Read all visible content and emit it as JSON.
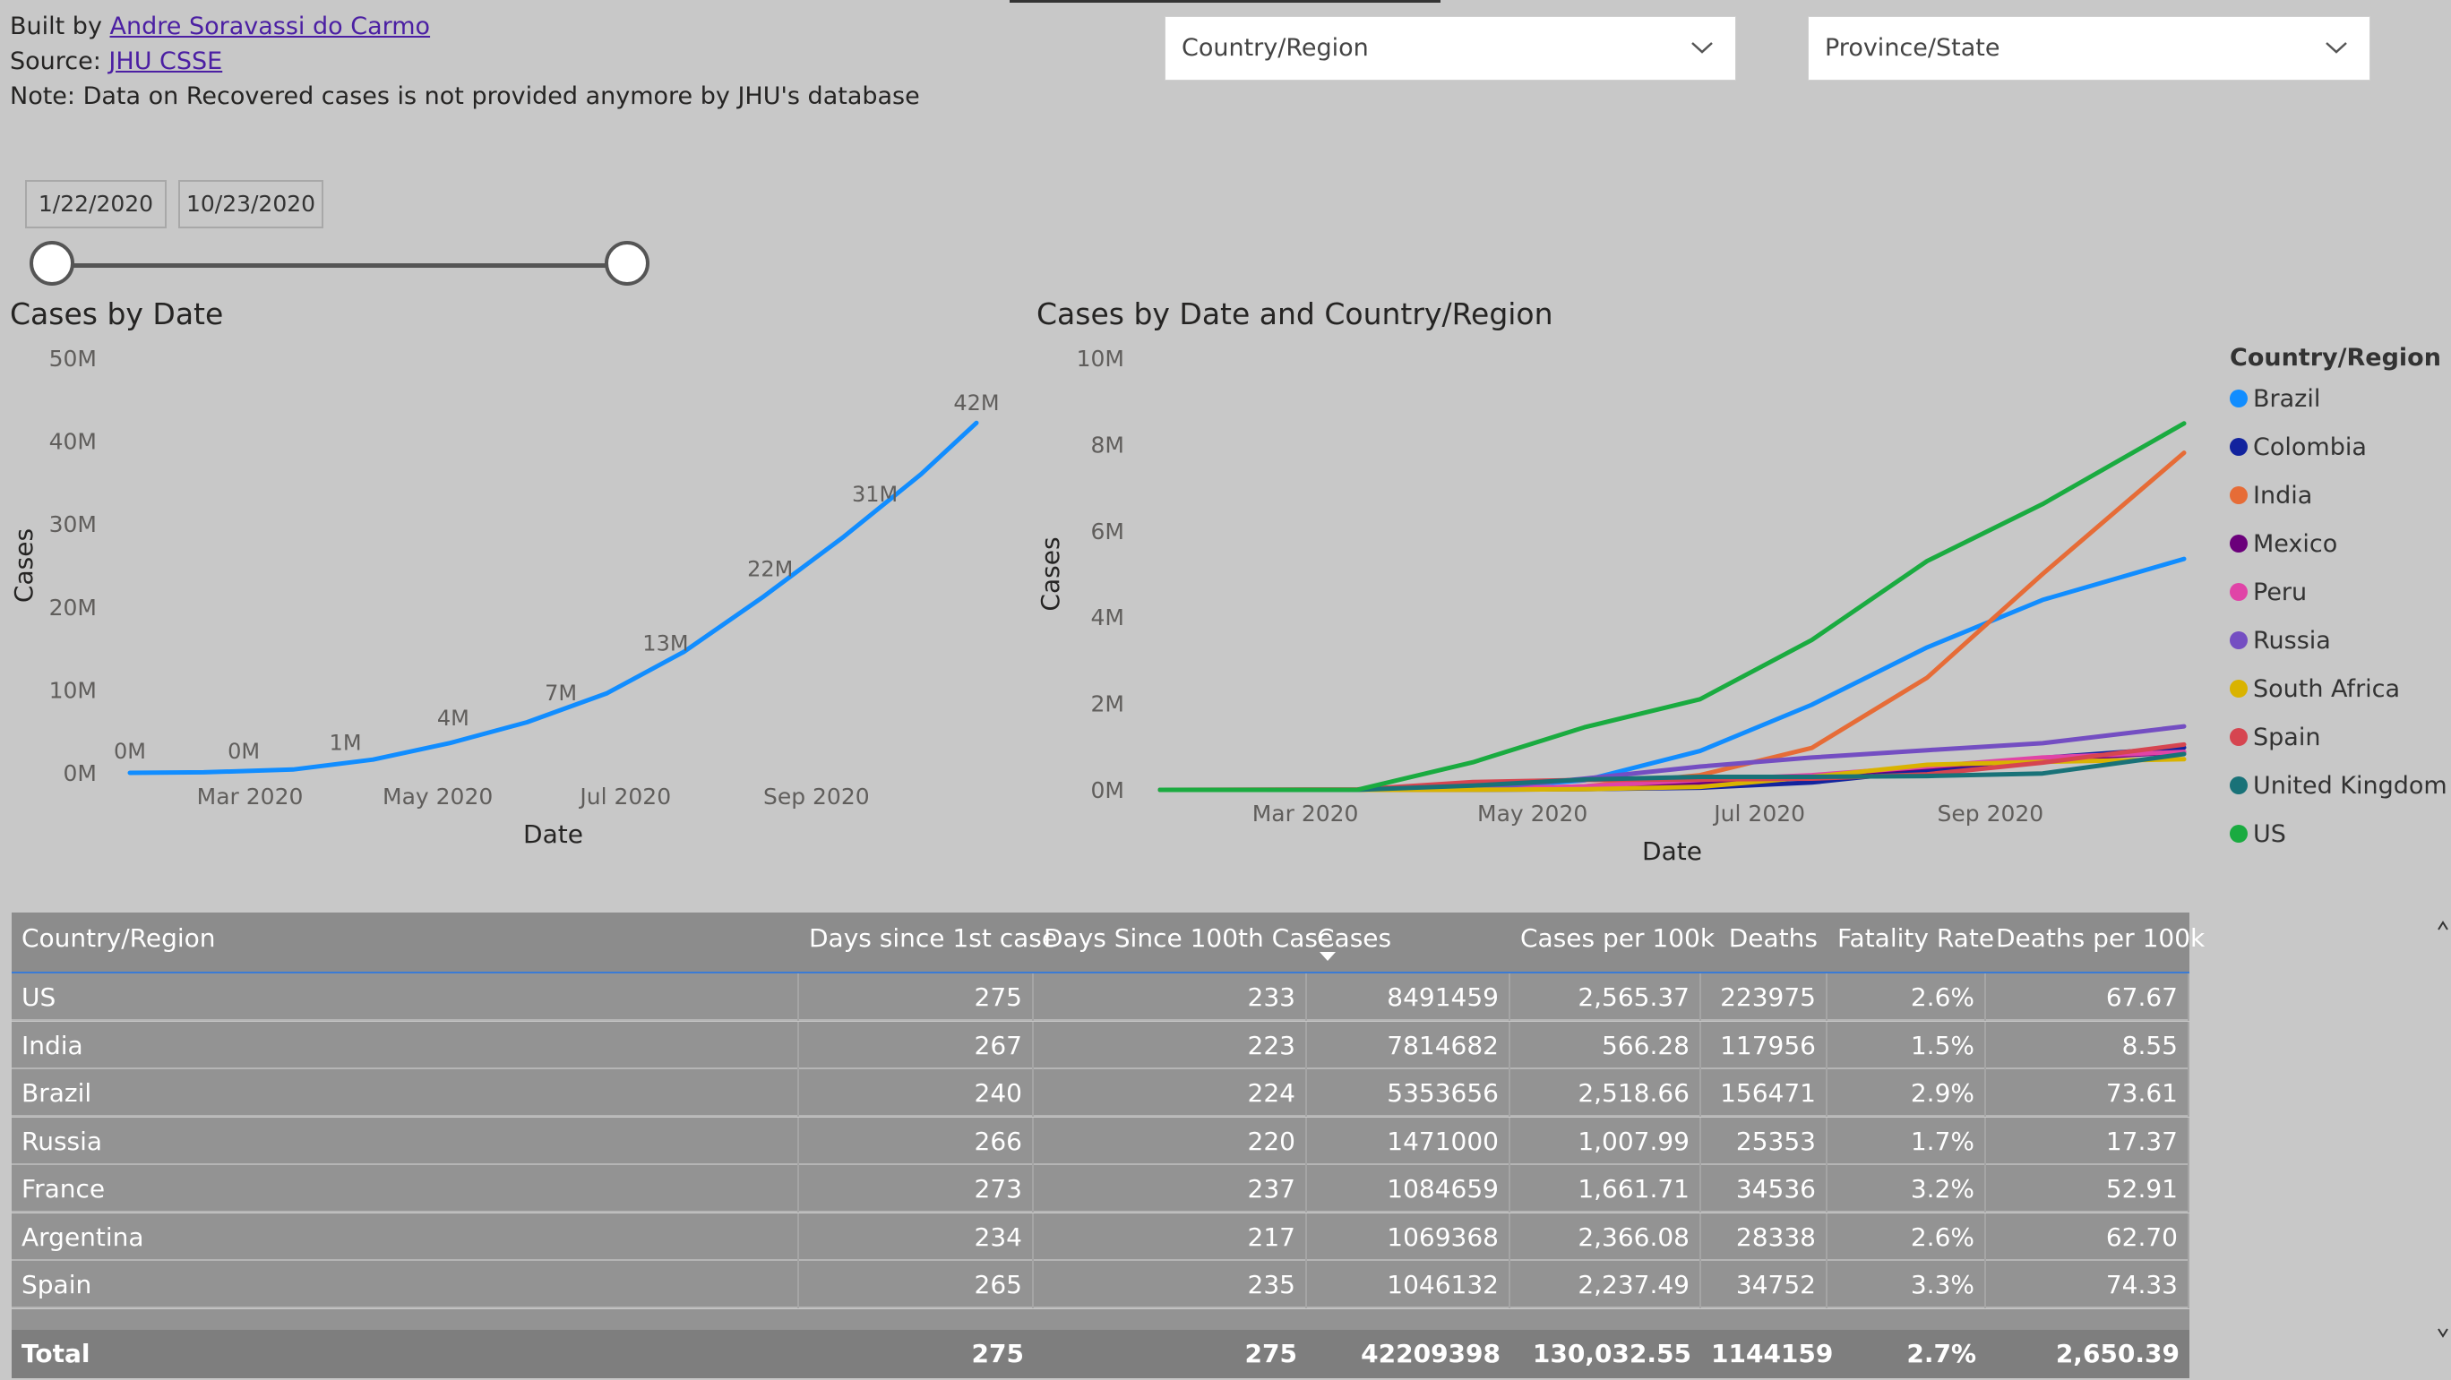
{
  "header": {
    "built_prefix": "Built by ",
    "author": "Andre Soravassi do Carmo",
    "source_prefix": "Source: ",
    "source_link": "JHU CSSE",
    "note": "Note: Data on Recovered cases is not provided anymore by JHU's database"
  },
  "filters": {
    "country_placeholder": "Country/Region",
    "province_placeholder": "Province/State",
    "date_start": "1/22/2020",
    "date_end": "10/23/2020"
  },
  "chart_data": [
    {
      "type": "line",
      "title": "Cases by Date",
      "xlabel": "Date",
      "ylabel": "Cases",
      "ylim": [
        0,
        50
      ],
      "yticks": [
        "0M",
        "10M",
        "20M",
        "30M",
        "40M",
        "50M"
      ],
      "xticks": [
        "Mar 2020",
        "May 2020",
        "Jul 2020",
        "Sep 2020"
      ],
      "color": "#118dff",
      "x": [
        "2020-01-22",
        "2020-02-15",
        "2020-03-15",
        "2020-04-10",
        "2020-05-05",
        "2020-05-30",
        "2020-06-25",
        "2020-07-20",
        "2020-08-15",
        "2020-09-10",
        "2020-10-05",
        "2020-10-23"
      ],
      "values": [
        0,
        0.07,
        0.4,
        1.6,
        3.6,
        6.1,
        9.6,
        14.6,
        21.3,
        28.5,
        36.0,
        42.2
      ],
      "data_labels": [
        {
          "x": "2020-01-22",
          "y": 0,
          "label": "0M"
        },
        {
          "x": "2020-02-28",
          "y": 0,
          "label": "0M"
        },
        {
          "x": "2020-04-01",
          "y": 1,
          "label": "1M"
        },
        {
          "x": "2020-05-06",
          "y": 4,
          "label": "4M"
        },
        {
          "x": "2020-06-10",
          "y": 7,
          "label": "7M"
        },
        {
          "x": "2020-07-14",
          "y": 13,
          "label": "13M"
        },
        {
          "x": "2020-08-17",
          "y": 22,
          "label": "22M"
        },
        {
          "x": "2020-09-20",
          "y": 31,
          "label": "31M"
        },
        {
          "x": "2020-10-23",
          "y": 42,
          "label": "42M"
        }
      ]
    },
    {
      "type": "line",
      "title": "Cases by Date and Country/Region",
      "xlabel": "Date",
      "ylabel": "Cases",
      "ylim": [
        0,
        10
      ],
      "yticks": [
        "0M",
        "2M",
        "4M",
        "6M",
        "8M",
        "10M"
      ],
      "xticks": [
        "Mar 2020",
        "May 2020",
        "Jul 2020",
        "Sep 2020"
      ],
      "legend_title": "Country/Region",
      "legend_position": "right",
      "x": [
        "2020-01-22",
        "2020-03-15",
        "2020-04-15",
        "2020-05-15",
        "2020-06-15",
        "2020-07-15",
        "2020-08-15",
        "2020-09-15",
        "2020-10-23"
      ],
      "series": [
        {
          "name": "Brazil",
          "color": "#118dff",
          "values": [
            0,
            0.0,
            0.03,
            0.22,
            0.9,
            1.97,
            3.3,
            4.4,
            5.35
          ]
        },
        {
          "name": "Colombia",
          "color": "#12239e",
          "values": [
            0,
            0,
            0.003,
            0.015,
            0.05,
            0.17,
            0.45,
            0.74,
            0.98
          ]
        },
        {
          "name": "India",
          "color": "#e66c37",
          "values": [
            0,
            0,
            0.01,
            0.08,
            0.34,
            0.97,
            2.6,
            5.0,
            7.81
          ]
        },
        {
          "name": "Mexico",
          "color": "#6b007b",
          "values": [
            0,
            0,
            0.01,
            0.04,
            0.15,
            0.31,
            0.52,
            0.69,
            0.88
          ]
        },
        {
          "name": "Peru",
          "color": "#e044a7",
          "values": [
            0,
            0,
            0.01,
            0.08,
            0.23,
            0.34,
            0.54,
            0.75,
            0.88
          ]
        },
        {
          "name": "Russia",
          "color": "#744ec2",
          "values": [
            0,
            0,
            0.02,
            0.26,
            0.54,
            0.75,
            0.92,
            1.08,
            1.47
          ]
        },
        {
          "name": "South Africa",
          "color": "#d9b300",
          "values": [
            0,
            0,
            0.003,
            0.015,
            0.07,
            0.3,
            0.58,
            0.65,
            0.71
          ]
        },
        {
          "name": "Spain",
          "color": "#d64550",
          "values": [
            0,
            0.01,
            0.18,
            0.23,
            0.24,
            0.26,
            0.36,
            0.63,
            1.05
          ]
        },
        {
          "name": "United Kingdom",
          "color": "#197278",
          "values": [
            0,
            0,
            0.1,
            0.24,
            0.3,
            0.3,
            0.32,
            0.38,
            0.83
          ]
        },
        {
          "name": "US",
          "color": "#1aab40",
          "values": [
            0,
            0.003,
            0.64,
            1.45,
            2.1,
            3.47,
            5.3,
            6.62,
            8.49
          ]
        }
      ]
    }
  ],
  "table": {
    "columns": [
      "Country/Region",
      "Days since 1st case",
      "Days Since 100th Case",
      "Cases",
      "Cases per 100k",
      "Deaths",
      "Fatality Rate",
      "Deaths per 100k"
    ],
    "rows": [
      [
        "US",
        "275",
        "233",
        "8491459",
        "2,565.37",
        "223975",
        "2.6%",
        "67.67"
      ],
      [
        "India",
        "267",
        "223",
        "7814682",
        "566.28",
        "117956",
        "1.5%",
        "8.55"
      ],
      [
        "Brazil",
        "240",
        "224",
        "5353656",
        "2,518.66",
        "156471",
        "2.9%",
        "73.61"
      ],
      [
        "Russia",
        "266",
        "220",
        "1471000",
        "1,007.99",
        "25353",
        "1.7%",
        "17.37"
      ],
      [
        "France",
        "273",
        "237",
        "1084659",
        "1,661.71",
        "34536",
        "3.2%",
        "52.91"
      ],
      [
        "Argentina",
        "234",
        "217",
        "1069368",
        "2,366.08",
        "28338",
        "2.6%",
        "62.70"
      ],
      [
        "Spain",
        "265",
        "235",
        "1046132",
        "2,237.49",
        "34752",
        "3.3%",
        "74.33"
      ]
    ],
    "total": [
      "Total",
      "275",
      "275",
      "42209398",
      "130,032.55",
      "1144159",
      "2.7%",
      "2,650.39"
    ]
  }
}
